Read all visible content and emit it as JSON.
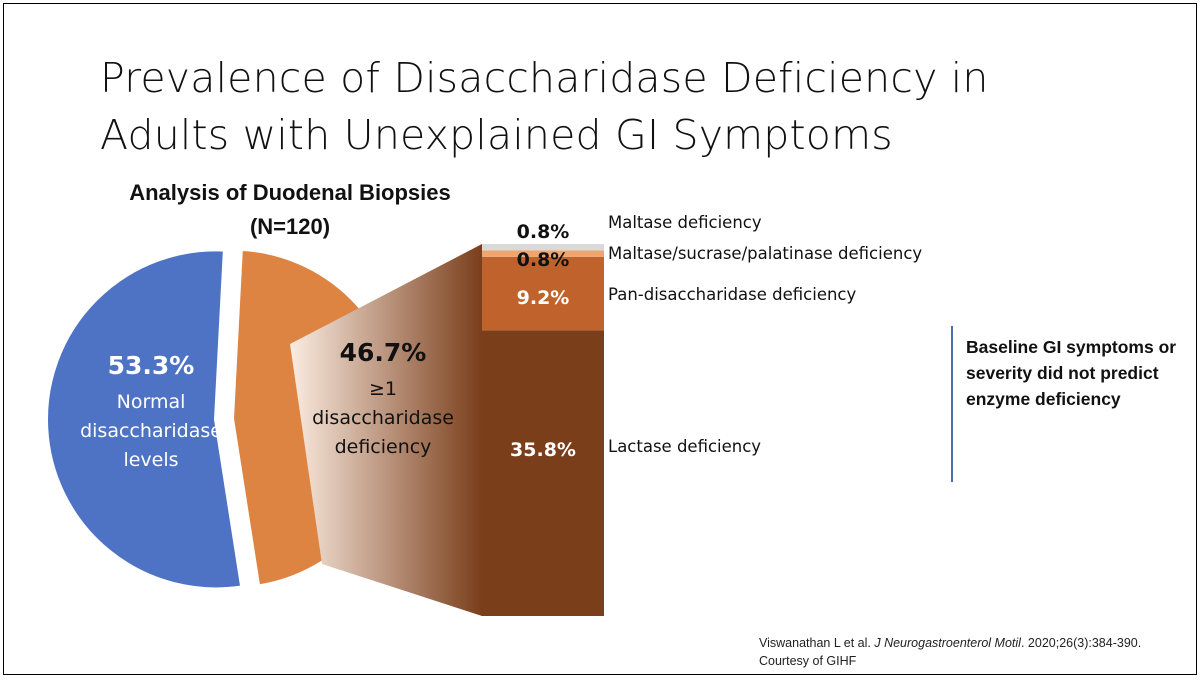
{
  "title": {
    "line1": "Prevalence of Disaccharidase Deficiency in",
    "line2": "Adults with Unexplained GI Symptoms"
  },
  "subtitle": {
    "line1": "Analysis of Duodenal Biopsies",
    "line2": "(N=120)"
  },
  "note": {
    "text": "Baseline GI symptoms or severity did not predict enzyme deficiency"
  },
  "citation": {
    "author": "Viswanathan L et al. ",
    "journal": "J Neurogastroenterol Motil",
    "rest": ". 2020;26(3):384-390.",
    "courtesy": "Courtesy of GIHF"
  },
  "colors": {
    "pie_normal": "#4e72c4",
    "pie_deficient": "#dd8443",
    "lactase": "#7a3e1b",
    "pan": "#c0622b",
    "mal_suc": "#f0a46e",
    "maltase": "#d9d9d9",
    "funnel_dark": "#7a3e1b",
    "funnel_light": "#fbece1"
  },
  "chart_data": [
    {
      "type": "pie",
      "categories": [
        "Normal disaccharidase levels",
        "≥1 disaccharidase deficiency"
      ],
      "values": [
        53.3,
        46.7
      ],
      "labels": [
        {
          "pct": "53.3%",
          "lines": [
            "Normal",
            "disaccharidase",
            "levels"
          ]
        },
        {
          "pct": "46.7%",
          "lines": [
            "≥1",
            "disaccharidase",
            "deficiency"
          ]
        }
      ]
    },
    {
      "type": "bar",
      "stacked": true,
      "categories": [
        "Lactase deficiency",
        "Pan-disaccharidase deficiency",
        "Maltase/sucrase/palatinase deficiency",
        "Maltase deficiency"
      ],
      "values": [
        35.8,
        9.2,
        0.8,
        0.8
      ],
      "value_labels": [
        "35.8%",
        "9.2%",
        "0.8%",
        "0.8%"
      ]
    }
  ]
}
